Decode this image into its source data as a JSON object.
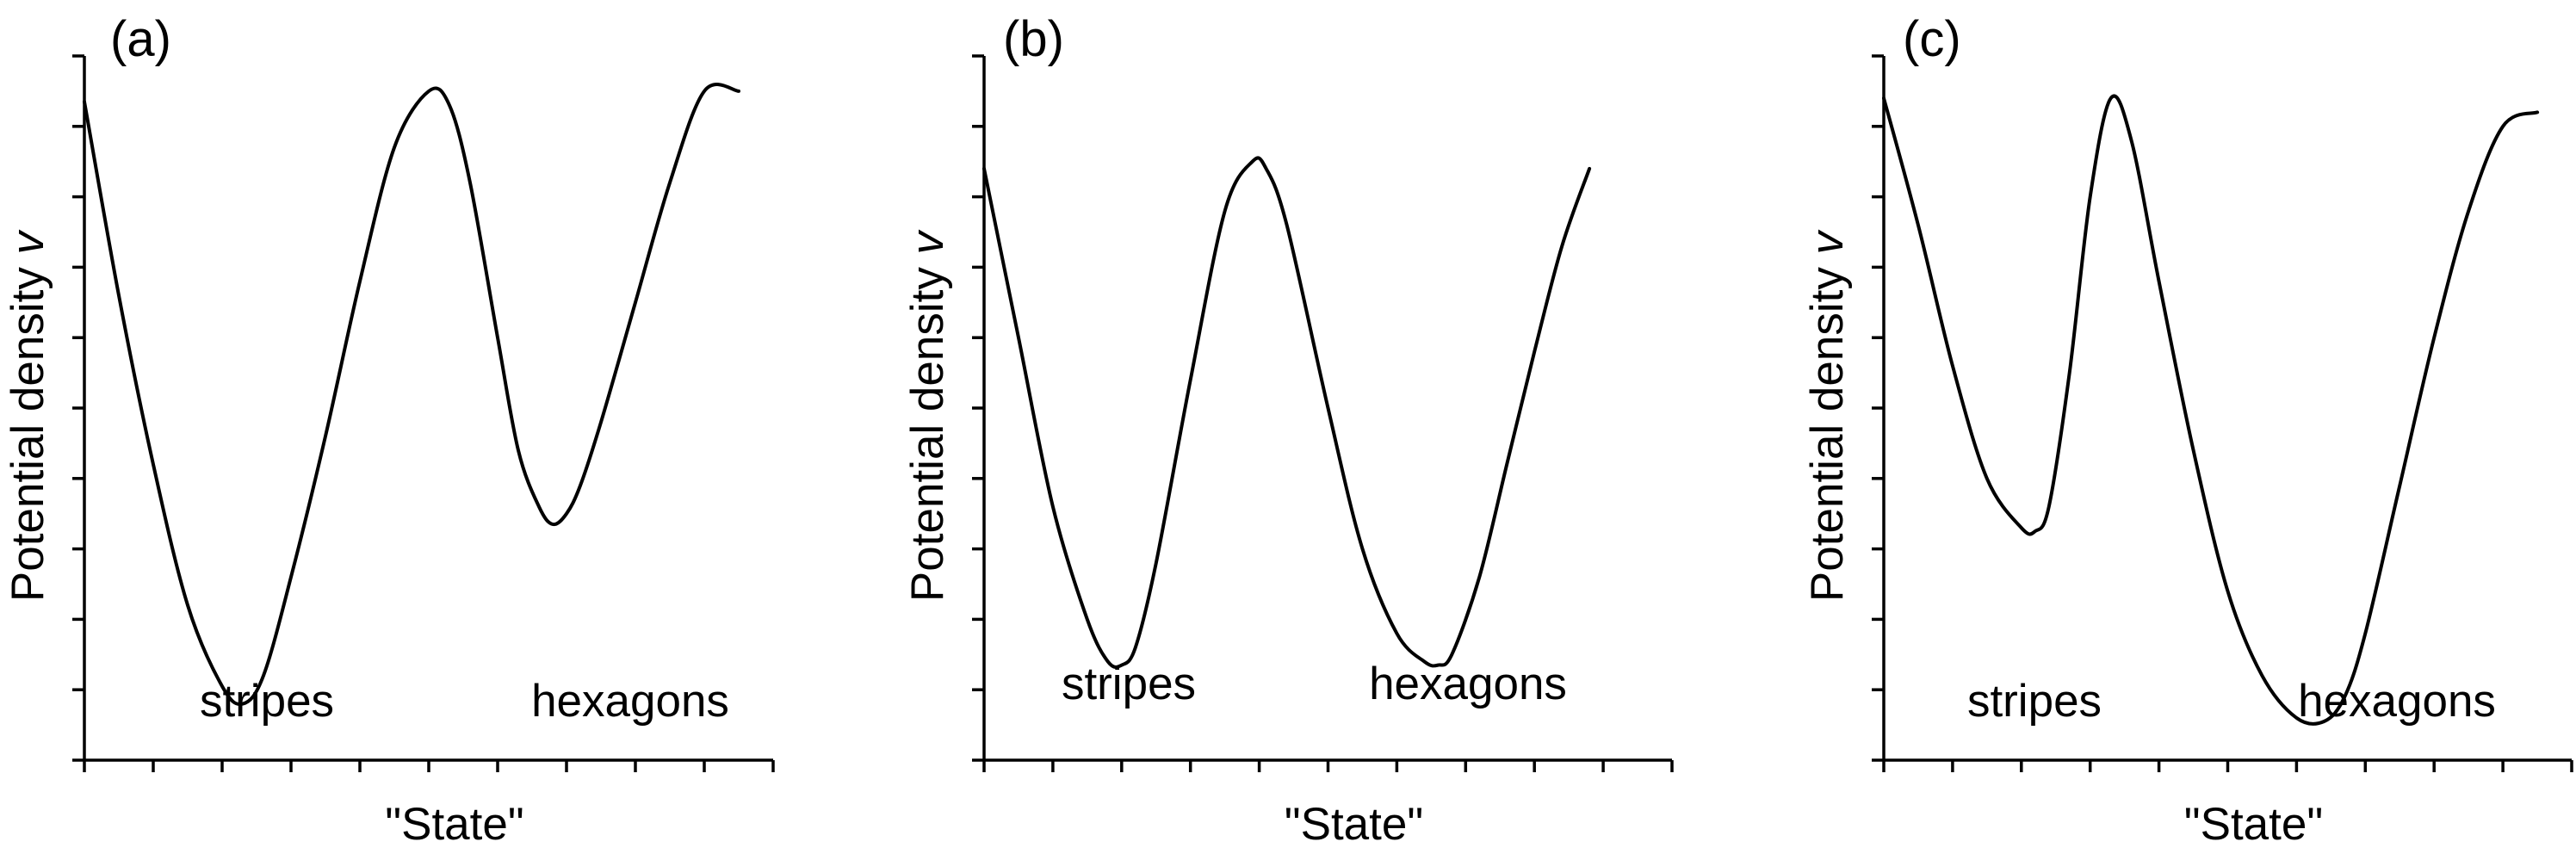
{
  "chart_data": [
    {
      "type": "line",
      "panel_label": "(a)",
      "xlabel": "\"State\"",
      "ylabel_text": "Potential density ",
      "ylabel_var": "v",
      "x_ticks": 10,
      "y_ticks": 10,
      "annotations": [
        "stripes",
        "hexagons"
      ],
      "series": [
        {
          "x": [
            0.0,
            0.5,
            1.0,
            1.5,
            2.0,
            2.3,
            2.6,
            3.0,
            3.5,
            4.0,
            4.5,
            5.0,
            5.3,
            5.6,
            6.0,
            6.3,
            6.6,
            6.8,
            7.0,
            7.2,
            7.5,
            8.0,
            8.5,
            9.0,
            9.5
          ],
          "y": [
            9.35,
            6.6,
            4.2,
            2.2,
            1.05,
            0.8,
            1.2,
            2.6,
            4.6,
            6.8,
            8.7,
            9.5,
            9.3,
            8.2,
            6.0,
            4.4,
            3.6,
            3.35,
            3.5,
            3.9,
            4.8,
            6.5,
            8.2,
            9.5,
            9.5
          ]
        }
      ]
    },
    {
      "type": "line",
      "panel_label": "(b)",
      "xlabel": "\"State\"",
      "ylabel_text": "Potential density ",
      "ylabel_var": "v",
      "x_ticks": 10,
      "y_ticks": 10,
      "annotations": [
        "stripes",
        "hexagons"
      ],
      "series": [
        {
          "x": [
            0.0,
            0.5,
            1.0,
            1.5,
            1.8,
            2.0,
            2.2,
            2.5,
            3.0,
            3.5,
            3.9,
            4.1,
            4.4,
            5.0,
            5.5,
            6.0,
            6.4,
            6.6,
            6.8,
            7.2,
            7.6,
            8.0,
            8.4,
            8.8
          ],
          "y": [
            8.4,
            6.0,
            3.6,
            2.0,
            1.4,
            1.35,
            1.6,
            2.8,
            5.4,
            7.8,
            8.5,
            8.4,
            7.6,
            5.0,
            3.0,
            1.8,
            1.4,
            1.35,
            1.5,
            2.6,
            4.2,
            5.8,
            7.3,
            8.4
          ]
        }
      ]
    },
    {
      "type": "line",
      "panel_label": "(c)",
      "xlabel": "\"State\"",
      "ylabel_text": "Potential density ",
      "ylabel_var": "v",
      "x_ticks": 10,
      "y_ticks": 10,
      "annotations": [
        "stripes",
        "hexagons"
      ],
      "series": [
        {
          "x": [
            0.0,
            0.5,
            1.0,
            1.5,
            2.0,
            2.2,
            2.4,
            2.7,
            3.0,
            3.3,
            3.6,
            4.0,
            4.5,
            5.0,
            5.5,
            6.0,
            6.4,
            6.7,
            7.0,
            7.5,
            8.0,
            8.5,
            9.0,
            9.5
          ],
          "y": [
            9.4,
            7.6,
            5.6,
            4.0,
            3.3,
            3.25,
            3.6,
            5.5,
            8.0,
            9.4,
            8.8,
            6.8,
            4.4,
            2.4,
            1.2,
            0.6,
            0.55,
            0.9,
            1.8,
            3.9,
            6.0,
            7.8,
            9.0,
            9.2
          ]
        }
      ]
    }
  ]
}
